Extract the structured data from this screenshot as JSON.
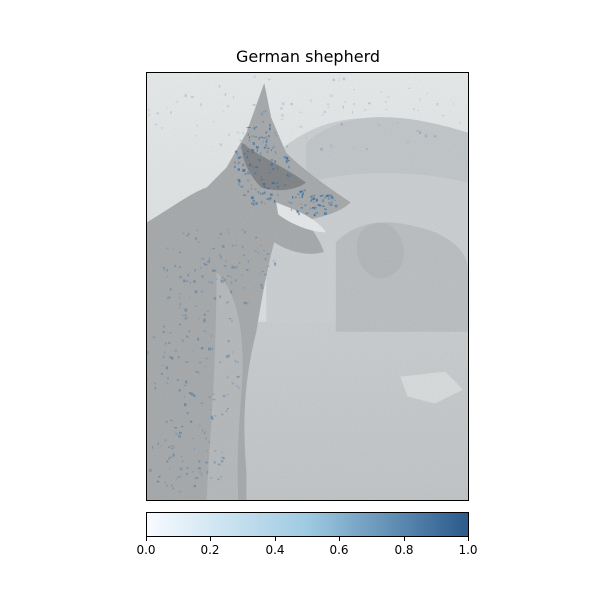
{
  "figure": {
    "title": "German shepherd",
    "subject_icon": "dog-photo-icon",
    "colors": {
      "cmap_low": "#f7fbff",
      "cmap_mid": "#9ecae1",
      "cmap_high": "#2b5a8c",
      "overlay_blue": "#2f6aa3"
    }
  },
  "colorbar": {
    "min": 0.0,
    "max": 1.0,
    "ticks": [
      "0.0",
      "0.2",
      "0.4",
      "0.6",
      "0.8",
      "1.0"
    ]
  }
}
